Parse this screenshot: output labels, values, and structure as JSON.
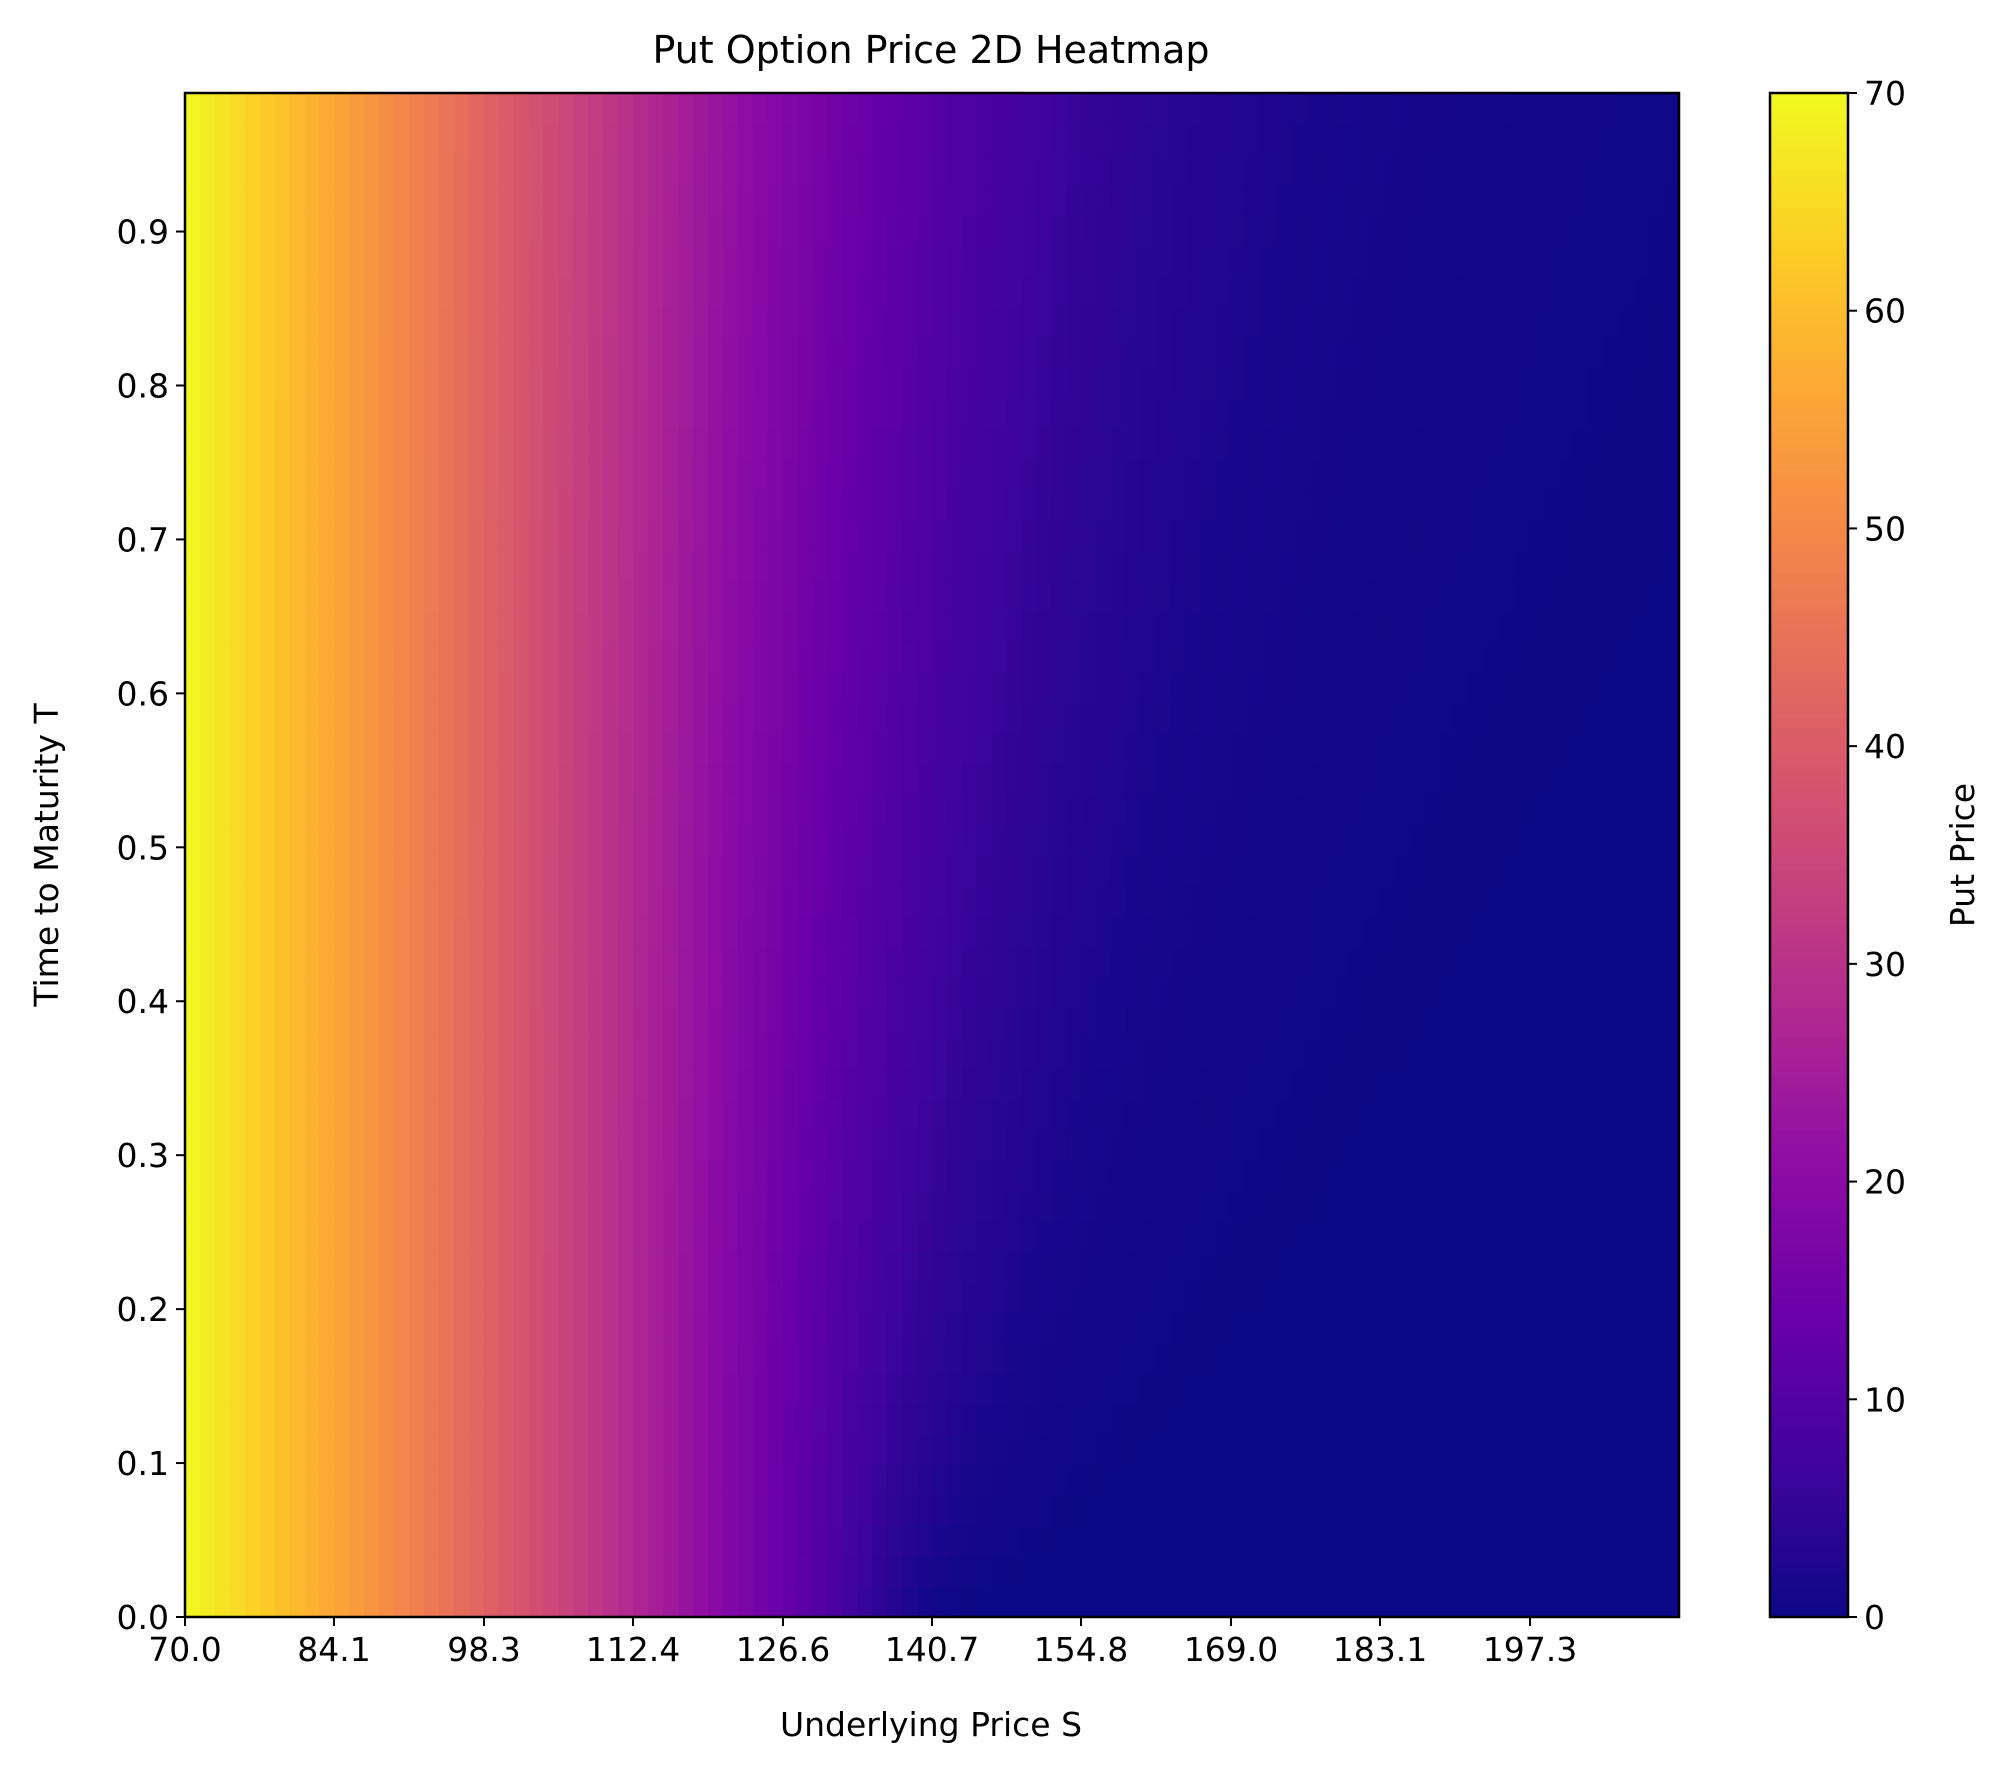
{
  "chart_data": {
    "type": "heatmap",
    "title": "Put Option Price 2D Heatmap",
    "xlabel": "Underlying Price S",
    "ylabel": "Time to Maturity T",
    "xlim": [
      70.0,
      211.4
    ],
    "ylim": [
      0.0,
      0.99
    ],
    "x_ticks": [
      "70.0",
      "84.1",
      "98.3",
      "112.4",
      "126.6",
      "140.7",
      "154.8",
      "169.0",
      "183.1",
      "197.3"
    ],
    "y_ticks": [
      "0.0",
      "0.1",
      "0.2",
      "0.3",
      "0.4",
      "0.5",
      "0.6",
      "0.7",
      "0.8",
      "0.9"
    ],
    "colorbar": {
      "label": "Put Price",
      "range": [
        0,
        70
      ],
      "ticks": [
        "0",
        "10",
        "20",
        "30",
        "40",
        "50",
        "60",
        "70"
      ],
      "colormap": "plasma"
    },
    "model": {
      "strike": 140,
      "rate": 0.0,
      "volatility": 0.2
    },
    "grid": false
  }
}
